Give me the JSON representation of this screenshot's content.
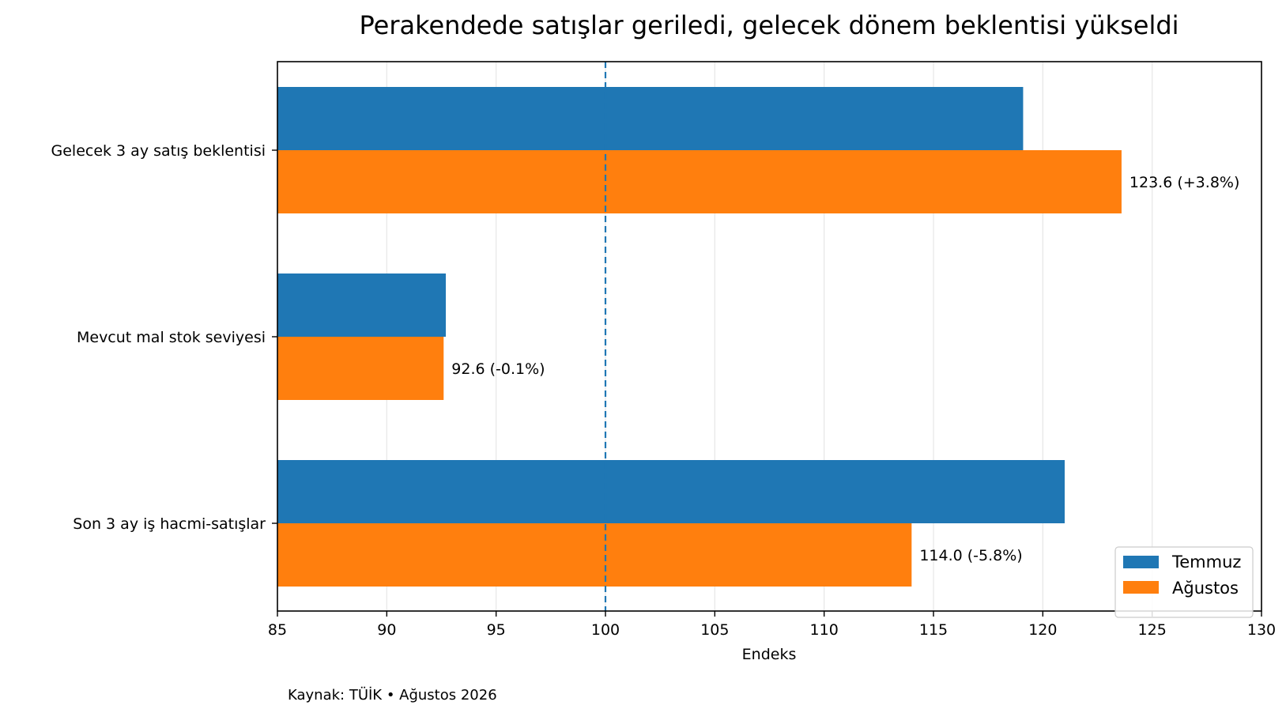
{
  "chart_data": {
    "type": "bar",
    "orientation": "horizontal",
    "title": "Perakendede satışlar geriledi, gelecek dönem beklentisi yükseldi",
    "xlabel": "Endeks",
    "ylabel": "",
    "categories": [
      "Gelecek 3 ay satış beklentisi",
      "Mevcut mal stok seviyesi",
      "Son 3 ay iş hacmi-satışlar"
    ],
    "series": [
      {
        "name": "Temmuz",
        "color": "#1f77b4",
        "values": [
          119.1,
          92.7,
          121.0
        ]
      },
      {
        "name": "Ağustos",
        "color": "#ff7f0e",
        "values": [
          123.6,
          92.6,
          114.0
        ]
      }
    ],
    "data_labels": [
      "123.6  (+3.8%)",
      "92.6  (-0.1%)",
      "114.0  (-5.8%)"
    ],
    "xlim": [
      85,
      130
    ],
    "xticks": [
      "85",
      "90",
      "95",
      "100",
      "105",
      "110",
      "115",
      "120",
      "125",
      "130"
    ],
    "reference_line": {
      "x": 100,
      "style": "dashed",
      "color": "#1f77b4"
    },
    "grid": "vertical",
    "legend": {
      "position": "bottom-right",
      "entries": [
        "Temmuz",
        "Ağustos"
      ]
    },
    "source": "Kaynak: TÜİK • Ağustos 2026"
  }
}
